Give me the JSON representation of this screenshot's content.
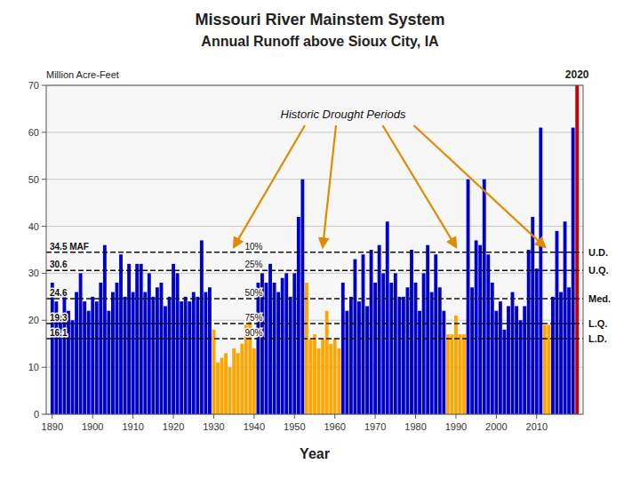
{
  "chart_data": {
    "type": "bar",
    "title": "Missouri River Mainstem System",
    "subtitle": "Annual Runoff above Sioux City, IA",
    "x_label": "Year",
    "y_label": "Million Acre-Feet",
    "xlim": [
      1888.5,
      2021.5
    ],
    "xticks": [
      1890,
      1900,
      1910,
      1920,
      1930,
      1940,
      1950,
      1960,
      1970,
      1980,
      1990,
      2000,
      2010
    ],
    "ylim": [
      0,
      70
    ],
    "yticks": [
      0,
      10,
      20,
      30,
      40,
      50,
      60,
      70
    ],
    "grid": true,
    "x": [
      1890,
      1891,
      1892,
      1893,
      1894,
      1895,
      1896,
      1897,
      1898,
      1899,
      1900,
      1901,
      1902,
      1903,
      1904,
      1905,
      1906,
      1907,
      1908,
      1909,
      1910,
      1911,
      1912,
      1913,
      1914,
      1915,
      1916,
      1917,
      1918,
      1919,
      1920,
      1921,
      1922,
      1923,
      1924,
      1925,
      1926,
      1927,
      1928,
      1929,
      1930,
      1931,
      1932,
      1933,
      1934,
      1935,
      1936,
      1937,
      1938,
      1939,
      1940,
      1941,
      1942,
      1943,
      1944,
      1945,
      1946,
      1947,
      1948,
      1949,
      1950,
      1951,
      1952,
      1953,
      1954,
      1955,
      1956,
      1957,
      1958,
      1959,
      1960,
      1961,
      1962,
      1963,
      1964,
      1965,
      1966,
      1967,
      1968,
      1969,
      1970,
      1971,
      1972,
      1973,
      1974,
      1975,
      1976,
      1977,
      1978,
      1979,
      1980,
      1981,
      1982,
      1983,
      1984,
      1985,
      1986,
      1987,
      1988,
      1989,
      1990,
      1991,
      1992,
      1993,
      1994,
      1995,
      1996,
      1997,
      1998,
      1999,
      2000,
      2001,
      2002,
      2003,
      2004,
      2005,
      2006,
      2007,
      2008,
      2009,
      2010,
      2011,
      2012,
      2013,
      2014,
      2015,
      2016,
      2017,
      2018,
      2019,
      2020
    ],
    "values": [
      28,
      24,
      21,
      26,
      22,
      20,
      26,
      30,
      24,
      22,
      25,
      24,
      28,
      36,
      22,
      26,
      28,
      34,
      25,
      32,
      26,
      32,
      32,
      26,
      30,
      25,
      27,
      28,
      23,
      25,
      32,
      30,
      24,
      25,
      24,
      26,
      25,
      37,
      26,
      27,
      18,
      11,
      12,
      13,
      10,
      14,
      13,
      15,
      19,
      20,
      14,
      28,
      30,
      28,
      32,
      28,
      26,
      29,
      30,
      25,
      30,
      42,
      50,
      28,
      16,
      17,
      14,
      16,
      22,
      15,
      16,
      14,
      28,
      22,
      25,
      33,
      24,
      34,
      23,
      35,
      28,
      36,
      30,
      41,
      28,
      30,
      25,
      25,
      27,
      35,
      28,
      22,
      30,
      36,
      26,
      34,
      27,
      22,
      17,
      17,
      21,
      17,
      17,
      50,
      27,
      37,
      36,
      50,
      34,
      28,
      22,
      24,
      18,
      23,
      26,
      23,
      20,
      23,
      35,
      42,
      31,
      61,
      19,
      19,
      25,
      39,
      26,
      41,
      27,
      61,
      70
    ],
    "colors": [
      "#0000cc",
      "#0000cc",
      "#0000cc",
      "#0000cc",
      "#0000cc",
      "#0000cc",
      "#0000cc",
      "#0000cc",
      "#0000cc",
      "#0000cc",
      "#0000cc",
      "#0000cc",
      "#0000cc",
      "#0000cc",
      "#0000cc",
      "#0000cc",
      "#0000cc",
      "#0000cc",
      "#0000cc",
      "#0000cc",
      "#0000cc",
      "#0000cc",
      "#0000cc",
      "#0000cc",
      "#0000cc",
      "#0000cc",
      "#0000cc",
      "#0000cc",
      "#0000cc",
      "#0000cc",
      "#0000cc",
      "#0000cc",
      "#0000cc",
      "#0000cc",
      "#0000cc",
      "#0000cc",
      "#0000cc",
      "#0000cc",
      "#0000cc",
      "#0000cc",
      "#ffa500",
      "#ffa500",
      "#ffa500",
      "#ffa500",
      "#ffa500",
      "#ffa500",
      "#ffa500",
      "#ffa500",
      "#ffa500",
      "#ffa500",
      "#ffa500",
      "#0000cc",
      "#0000cc",
      "#0000cc",
      "#0000cc",
      "#0000cc",
      "#0000cc",
      "#0000cc",
      "#0000cc",
      "#0000cc",
      "#0000cc",
      "#0000cc",
      "#0000cc",
      "#ffa500",
      "#ffa500",
      "#ffa500",
      "#ffa500",
      "#ffa500",
      "#ffa500",
      "#ffa500",
      "#ffa500",
      "#ffa500",
      "#0000cc",
      "#0000cc",
      "#0000cc",
      "#0000cc",
      "#0000cc",
      "#0000cc",
      "#0000cc",
      "#0000cc",
      "#0000cc",
      "#0000cc",
      "#0000cc",
      "#0000cc",
      "#0000cc",
      "#0000cc",
      "#0000cc",
      "#0000cc",
      "#0000cc",
      "#0000cc",
      "#0000cc",
      "#0000cc",
      "#0000cc",
      "#0000cc",
      "#0000cc",
      "#0000cc",
      "#0000cc",
      "#0000cc",
      "#ffa500",
      "#ffa500",
      "#ffa500",
      "#ffa500",
      "#ffa500",
      "#0000cc",
      "#0000cc",
      "#0000cc",
      "#0000cc",
      "#0000cc",
      "#0000cc",
      "#0000cc",
      "#0000cc",
      "#0000cc",
      "#0000cc",
      "#0000cc",
      "#0000cc",
      "#0000cc",
      "#0000cc",
      "#0000cc",
      "#0000cc",
      "#0000cc",
      "#0000cc",
      "#0000cc",
      "#ffa500",
      "#ffa500",
      "#0000cc",
      "#0000cc",
      "#0000cc",
      "#0000cc",
      "#0000cc",
      "#0000cc",
      "#cc0000"
    ],
    "reference_lines": [
      {
        "y": 34.5,
        "label": "34.5 MAF",
        "name": "U.D.",
        "percentile_label": "10%"
      },
      {
        "y": 30.6,
        "label": "30.6",
        "name": "U.Q.",
        "percentile_label": "25%"
      },
      {
        "y": 24.6,
        "label": "24.6",
        "name": "Med.",
        "percentile_label": "50%"
      },
      {
        "y": 19.3,
        "label": "19.3",
        "name": "L.Q.",
        "percentile_label": "75%"
      },
      {
        "y": 16.1,
        "label": "16.1",
        "name": "L.D.",
        "percentile_label": "90%"
      }
    ],
    "highlight": {
      "x": 2020,
      "label": "2020"
    },
    "annotation": {
      "text": "Historic Drought Periods",
      "arrow_x": [
        1935,
        1957,
        1990,
        2012
      ]
    }
  }
}
